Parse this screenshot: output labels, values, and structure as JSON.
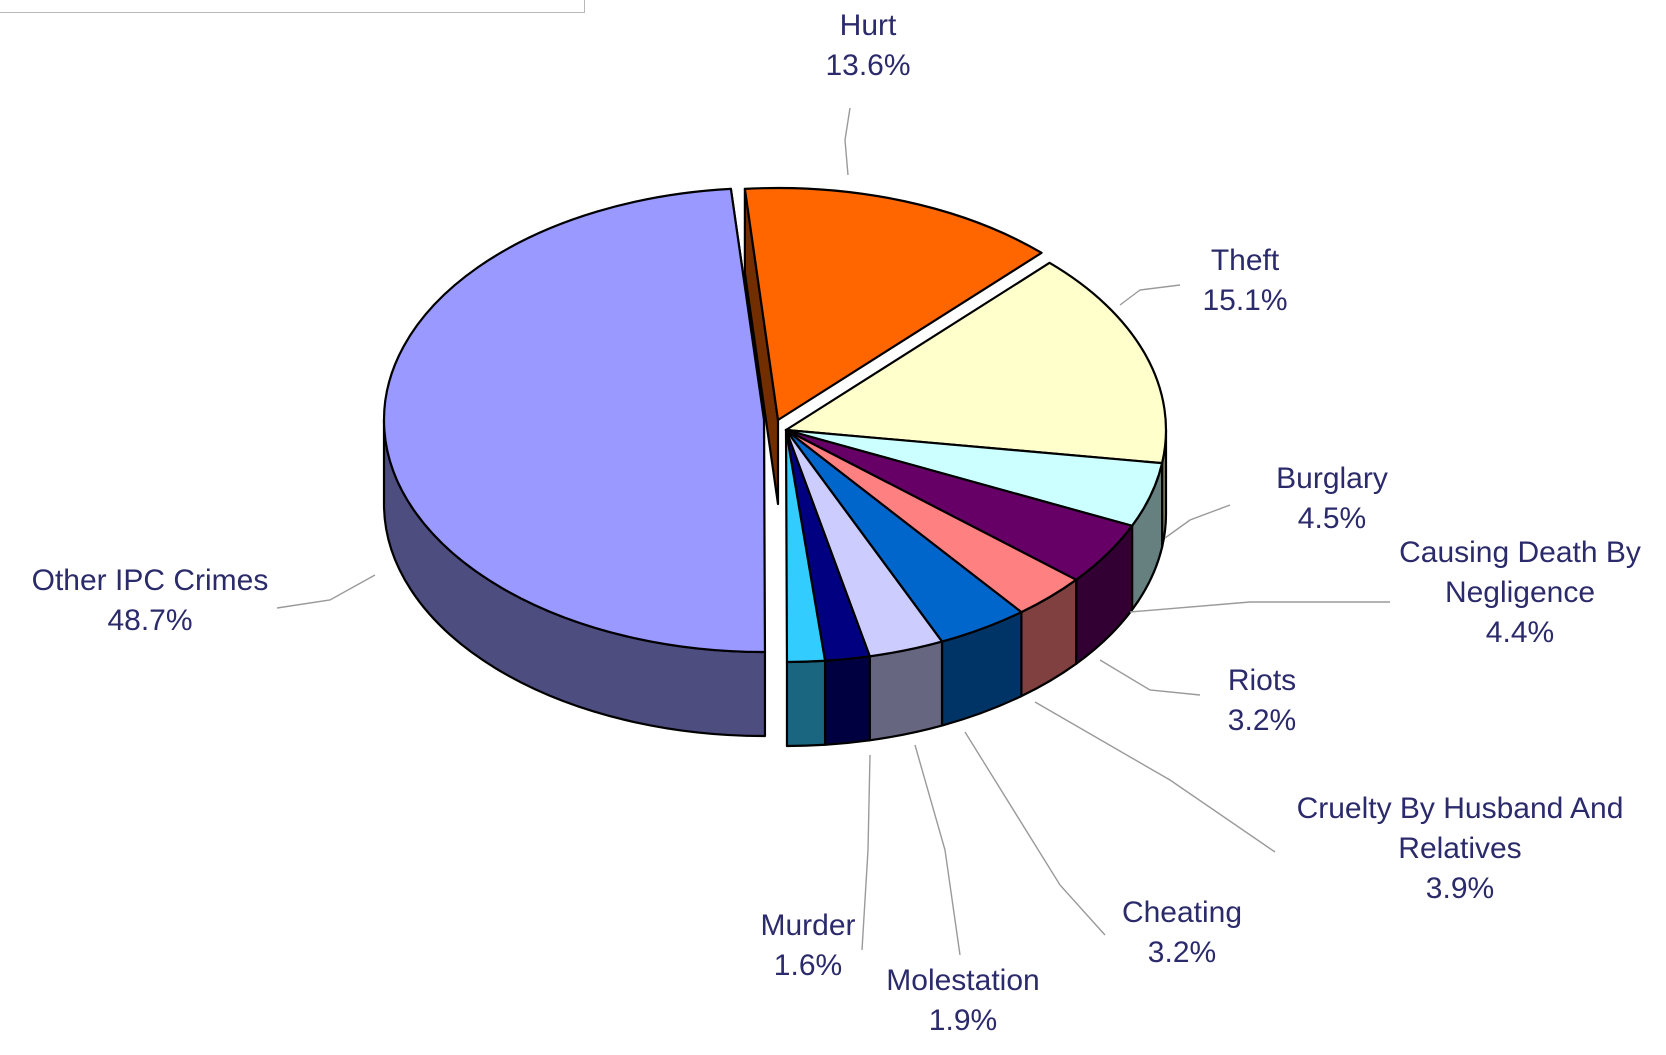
{
  "chart_data": {
    "type": "pie",
    "title": "",
    "slices": [
      {
        "label": "Hurt",
        "value": 13.6,
        "value_text": "13.6%",
        "color": "#ff6600"
      },
      {
        "label": "Theft",
        "value": 15.1,
        "value_text": "15.1%",
        "color": "#ffffcc"
      },
      {
        "label": "Burglary",
        "value": 4.5,
        "value_text": "4.5%",
        "color": "#ccffff"
      },
      {
        "label": "Causing Death By Negligence",
        "value": 4.4,
        "value_text": "4.4%",
        "color": "#660066"
      },
      {
        "label": "Riots",
        "value": 3.2,
        "value_text": "3.2%",
        "color": "#ff8080"
      },
      {
        "label": "Cruelty By Husband And Relatives",
        "value": 3.9,
        "value_text": "3.9%",
        "color": "#0066cc"
      },
      {
        "label": "Cheating",
        "value": 3.2,
        "value_text": "3.2%",
        "color": "#ccccff"
      },
      {
        "label": "Molestation",
        "value": 1.9,
        "value_text": "1.9%",
        "color": "#000080"
      },
      {
        "label": "Murder",
        "value": 1.6,
        "value_text": "1.6%",
        "color": "#33ccff"
      },
      {
        "label": "Other IPC Crimes",
        "value": 48.7,
        "value_text": "48.7%",
        "color": "#9999ff"
      }
    ],
    "style": "3d-exploded",
    "legend": "none"
  }
}
